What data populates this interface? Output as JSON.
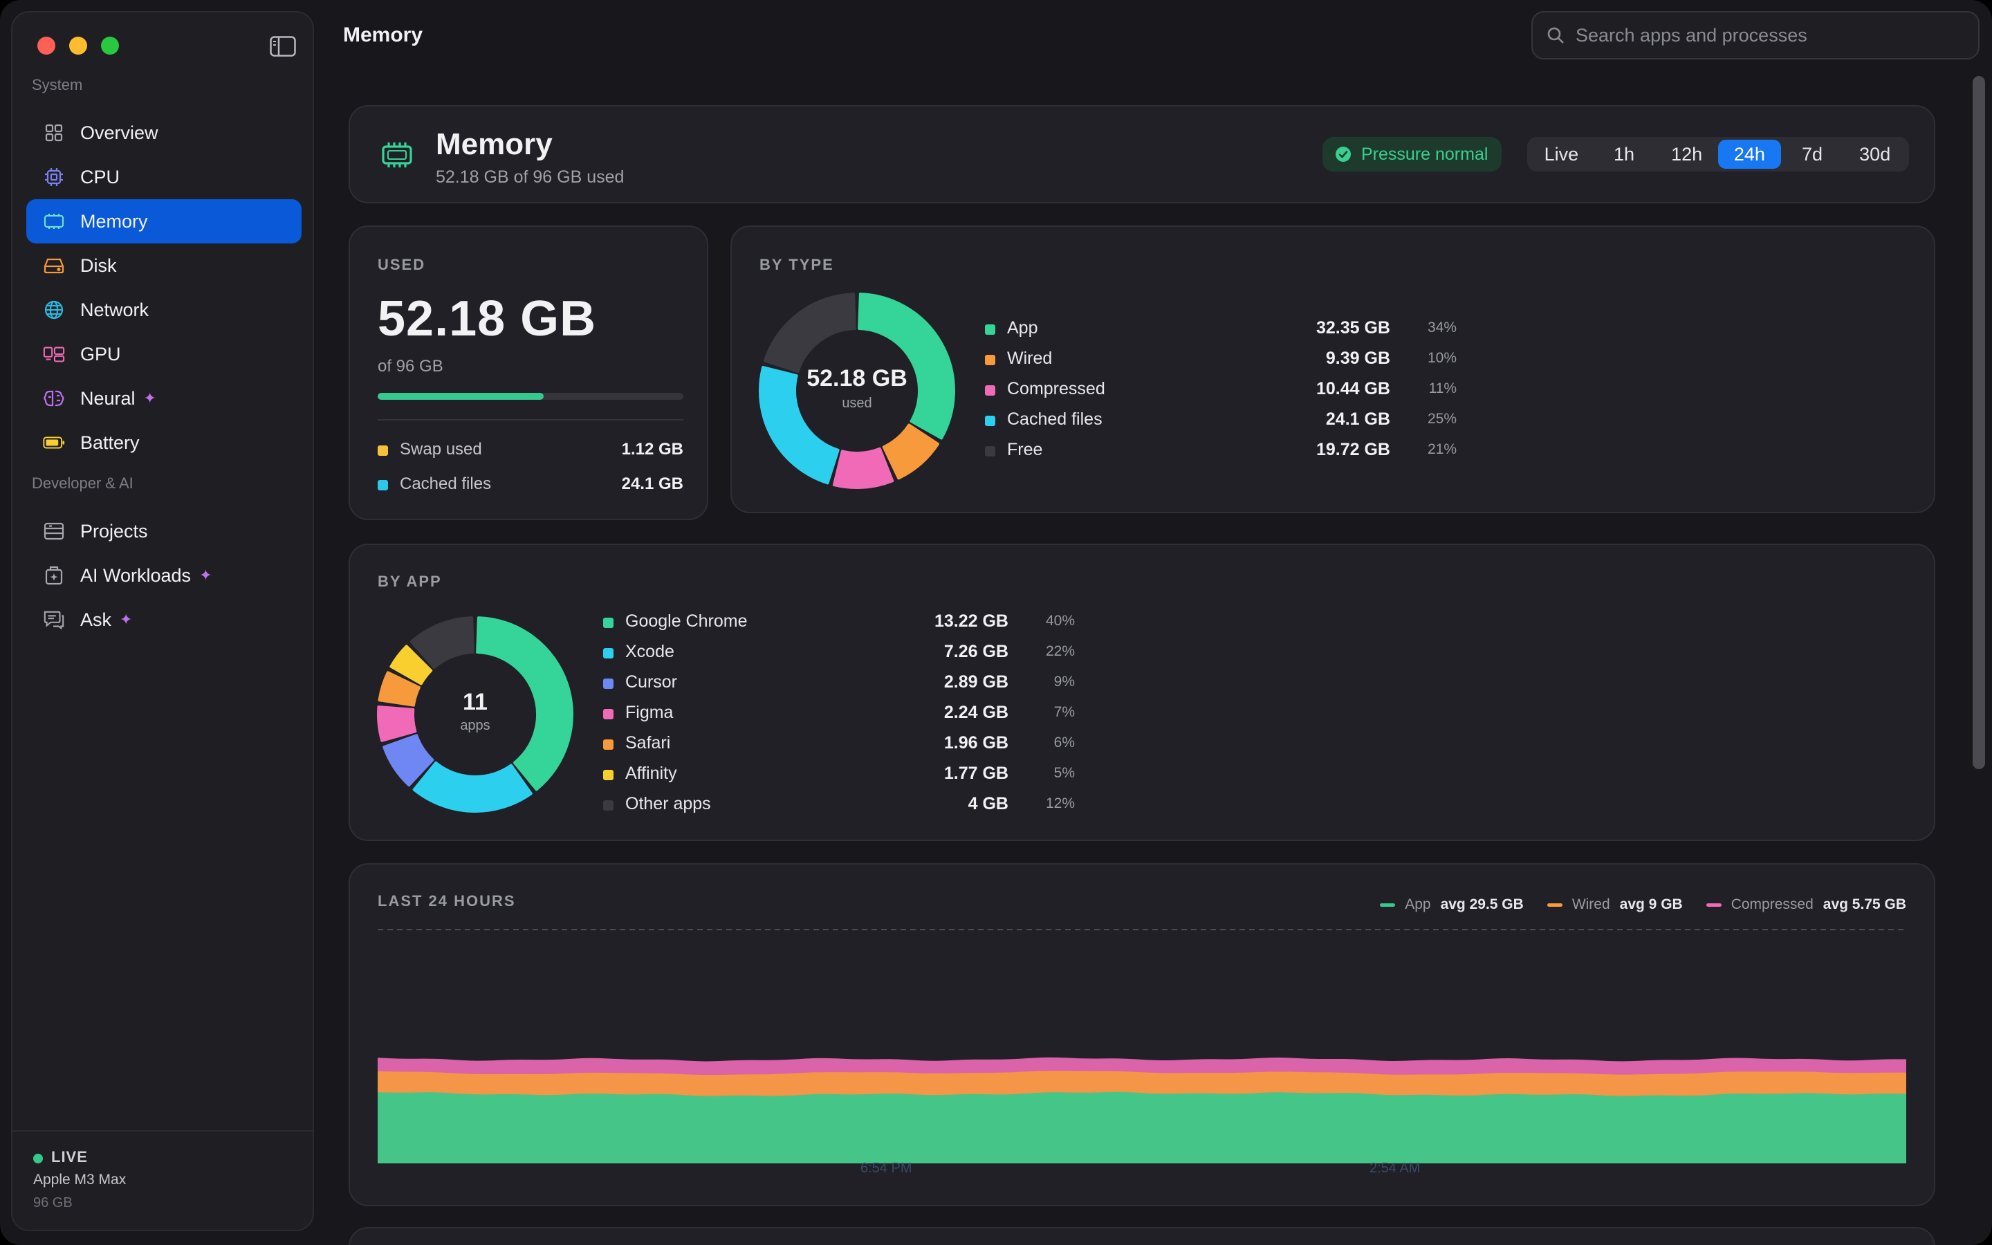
{
  "sidebar": {
    "sections": [
      {
        "label": "System"
      },
      {
        "label": "Developer & AI"
      }
    ],
    "items": [
      {
        "label": "Overview",
        "icon": "grid-icon"
      },
      {
        "label": "CPU",
        "icon": "cpu-icon"
      },
      {
        "label": "Memory",
        "icon": "memory-icon",
        "active": true
      },
      {
        "label": "Disk",
        "icon": "disk-icon"
      },
      {
        "label": "Network",
        "icon": "globe-icon"
      },
      {
        "label": "GPU",
        "icon": "gpu-icon"
      },
      {
        "label": "Neural",
        "icon": "brain-icon",
        "sparkle": "✦"
      },
      {
        "label": "Battery",
        "icon": "battery-icon"
      },
      {
        "label": "Projects",
        "icon": "projects-icon"
      },
      {
        "label": "AI Workloads",
        "icon": "ai-workloads-icon",
        "sparkle": "✦"
      },
      {
        "label": "Ask",
        "icon": "chat-icon",
        "sparkle": "✦"
      }
    ],
    "footer": {
      "status": "LIVE",
      "chip": "Apple M3 Max",
      "ram": "96 GB"
    }
  },
  "header": {
    "title": "Memory",
    "search_placeholder": "Search apps and processes"
  },
  "memory_card": {
    "title": "Memory",
    "subtitle": "52.18 GB of 96 GB used",
    "pressure": "Pressure normal",
    "ranges": [
      "Live",
      "1h",
      "12h",
      "24h",
      "7d",
      "30d"
    ],
    "active_range": "24h"
  },
  "used": {
    "title": "USED",
    "value": "52.18 GB",
    "of": "of 96 GB",
    "fraction": 0.5435,
    "stats": [
      {
        "label": "Swap used",
        "value": "1.12 GB",
        "color": "#f6c23a"
      },
      {
        "label": "Cached files",
        "value": "24.1 GB",
        "color": "#2cc8ea"
      }
    ]
  },
  "by_type": {
    "title": "BY TYPE",
    "center_value": "52.18 GB",
    "center_label": "used",
    "rows": [
      {
        "label": "App",
        "value": "32.35 GB",
        "pct": "34%",
        "gb": 32.35,
        "color": "#35d498"
      },
      {
        "label": "Wired",
        "value": "9.39 GB",
        "pct": "10%",
        "gb": 9.39,
        "color": "#f79a3c"
      },
      {
        "label": "Compressed",
        "value": "10.44 GB",
        "pct": "11%",
        "gb": 10.44,
        "color": "#f06ab8"
      },
      {
        "label": "Cached files",
        "value": "24.1 GB",
        "pct": "25%",
        "gb": 24.1,
        "color": "#2cd0ee"
      },
      {
        "label": "Free",
        "value": "19.72 GB",
        "pct": "21%",
        "gb": 19.72,
        "color": "#3a3a40"
      }
    ]
  },
  "by_app": {
    "title": "BY APP",
    "center_value": "11",
    "center_label": "apps",
    "rows": [
      {
        "label": "Google Chrome",
        "value": "13.22 GB",
        "pct": "40%",
        "gb": 13.22,
        "color": "#35d498"
      },
      {
        "label": "Xcode",
        "value": "7.26 GB",
        "pct": "22%",
        "gb": 7.26,
        "color": "#2cd0ee"
      },
      {
        "label": "Cursor",
        "value": "2.89 GB",
        "pct": "9%",
        "gb": 2.89,
        "color": "#6f87f2"
      },
      {
        "label": "Figma",
        "value": "2.24 GB",
        "pct": "7%",
        "gb": 2.24,
        "color": "#f06ab8"
      },
      {
        "label": "Safari",
        "value": "1.96 GB",
        "pct": "6%",
        "gb": 1.96,
        "color": "#f79a3c"
      },
      {
        "label": "Affinity",
        "value": "1.77 GB",
        "pct": "5%",
        "gb": 1.77,
        "color": "#f8cf2f"
      },
      {
        "label": "Other apps",
        "value": "4 GB",
        "pct": "12%",
        "gb": 4,
        "color": "#3a3a40"
      }
    ]
  },
  "last24": {
    "title": "LAST 24 HOURS",
    "legend": [
      {
        "name": "App",
        "avg": "avg 29.5 GB",
        "color": "#35c98d"
      },
      {
        "name": "Wired",
        "avg": "avg 9 GB",
        "color": "#f79a3c"
      },
      {
        "name": "Compressed",
        "avg": "avg 5.75 GB",
        "color": "#f06ab8"
      }
    ],
    "x_ticks": [
      "6:54 PM",
      "2:54 AM"
    ]
  },
  "chart_data": {
    "type": "area",
    "title": "LAST 24 HOURS",
    "stacked": true,
    "x": [
      "6:54 PM",
      "2:54 AM"
    ],
    "ylim": [
      0,
      96
    ],
    "grid": false,
    "legend_position": "top-right",
    "series": [
      {
        "name": "App",
        "avg": 29.5,
        "color": "#35c98d"
      },
      {
        "name": "Wired",
        "avg": 9,
        "color": "#f79a3c"
      },
      {
        "name": "Compressed",
        "avg": 5.75,
        "color": "#f06ab8"
      }
    ]
  }
}
